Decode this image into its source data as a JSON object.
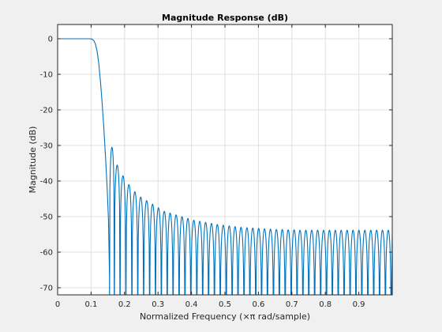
{
  "chart_data": {
    "type": "line",
    "title": "Magnitude Response (dB)",
    "xlabel": "Normalized Frequency (×π rad/sample)",
    "ylabel": "Magnitude (dB)",
    "xlim": [
      0,
      1
    ],
    "ylim": [
      -72,
      4
    ],
    "xticks": [
      0,
      0.1,
      0.2,
      0.3,
      0.4,
      0.5,
      0.6,
      0.7,
      0.8,
      0.9
    ],
    "xtick_labels": [
      "0",
      "0.1",
      "0.2",
      "0.3",
      "0.4",
      "0.5",
      "0.6",
      "0.7",
      "0.8",
      "0.9"
    ],
    "yticks": [
      0,
      -10,
      -20,
      -30,
      -40,
      -50,
      -60,
      -70
    ],
    "ytick_labels": [
      "0",
      "-10",
      "-20",
      "-30",
      "-40",
      "-50",
      "-60",
      "-70"
    ],
    "grid": true,
    "series": [
      {
        "x": [
          0,
          0.095,
          0.103,
          0.108,
          0.113,
          0.118,
          0.123,
          0.128,
          0.133,
          0.138,
          0.143,
          0.148,
          0.152,
          0.155
        ],
        "values": [
          0,
          0,
          -0.1,
          -0.5,
          -1.5,
          -3.5,
          -7,
          -12,
          -18,
          -25,
          -33,
          -42,
          -51,
          -67
        ]
      }
    ],
    "sidelobe_peaks": {
      "x": [
        0.161,
        0.178,
        0.195,
        0.213,
        0.231,
        0.248,
        0.266,
        0.284,
        0.301,
        0.319,
        0.336,
        0.354,
        0.372,
        0.389,
        0.407,
        0.425,
        0.442,
        0.46,
        0.477,
        0.495,
        0.513,
        0.53,
        0.548,
        0.566,
        0.583,
        0.601,
        0.618,
        0.636,
        0.654,
        0.671,
        0.689,
        0.707,
        0.724,
        0.742,
        0.759,
        0.777,
        0.795,
        0.812,
        0.83,
        0.847,
        0.865,
        0.883,
        0.9,
        0.918,
        0.936,
        0.953,
        0.971,
        0.988
      ],
      "values": [
        -30.5,
        -35.5,
        -38.5,
        -41,
        -43,
        -44.5,
        -45.5,
        -46.5,
        -47.5,
        -48.5,
        -49,
        -49.5,
        -50,
        -50.5,
        -51,
        -51.3,
        -51.6,
        -51.9,
        -52.2,
        -52.4,
        -52.6,
        -52.8,
        -53,
        -53.1,
        -53.2,
        -53.3,
        -53.4,
        -53.5,
        -53.6,
        -53.6,
        -53.7,
        -53.7,
        -53.8,
        -53.8,
        -53.8,
        -53.8,
        -53.8,
        -53.8,
        -53.8,
        -53.8,
        -53.8,
        -53.8,
        -53.8,
        -53.8,
        -53.8,
        -53.8,
        -53.8,
        -53.8
      ]
    },
    "colors": {
      "line": "#0072bd",
      "axes_bg": "#ffffff",
      "figure_bg": "#f0f0f0",
      "grid": "#dfdfdf",
      "axis": "#262626"
    }
  }
}
